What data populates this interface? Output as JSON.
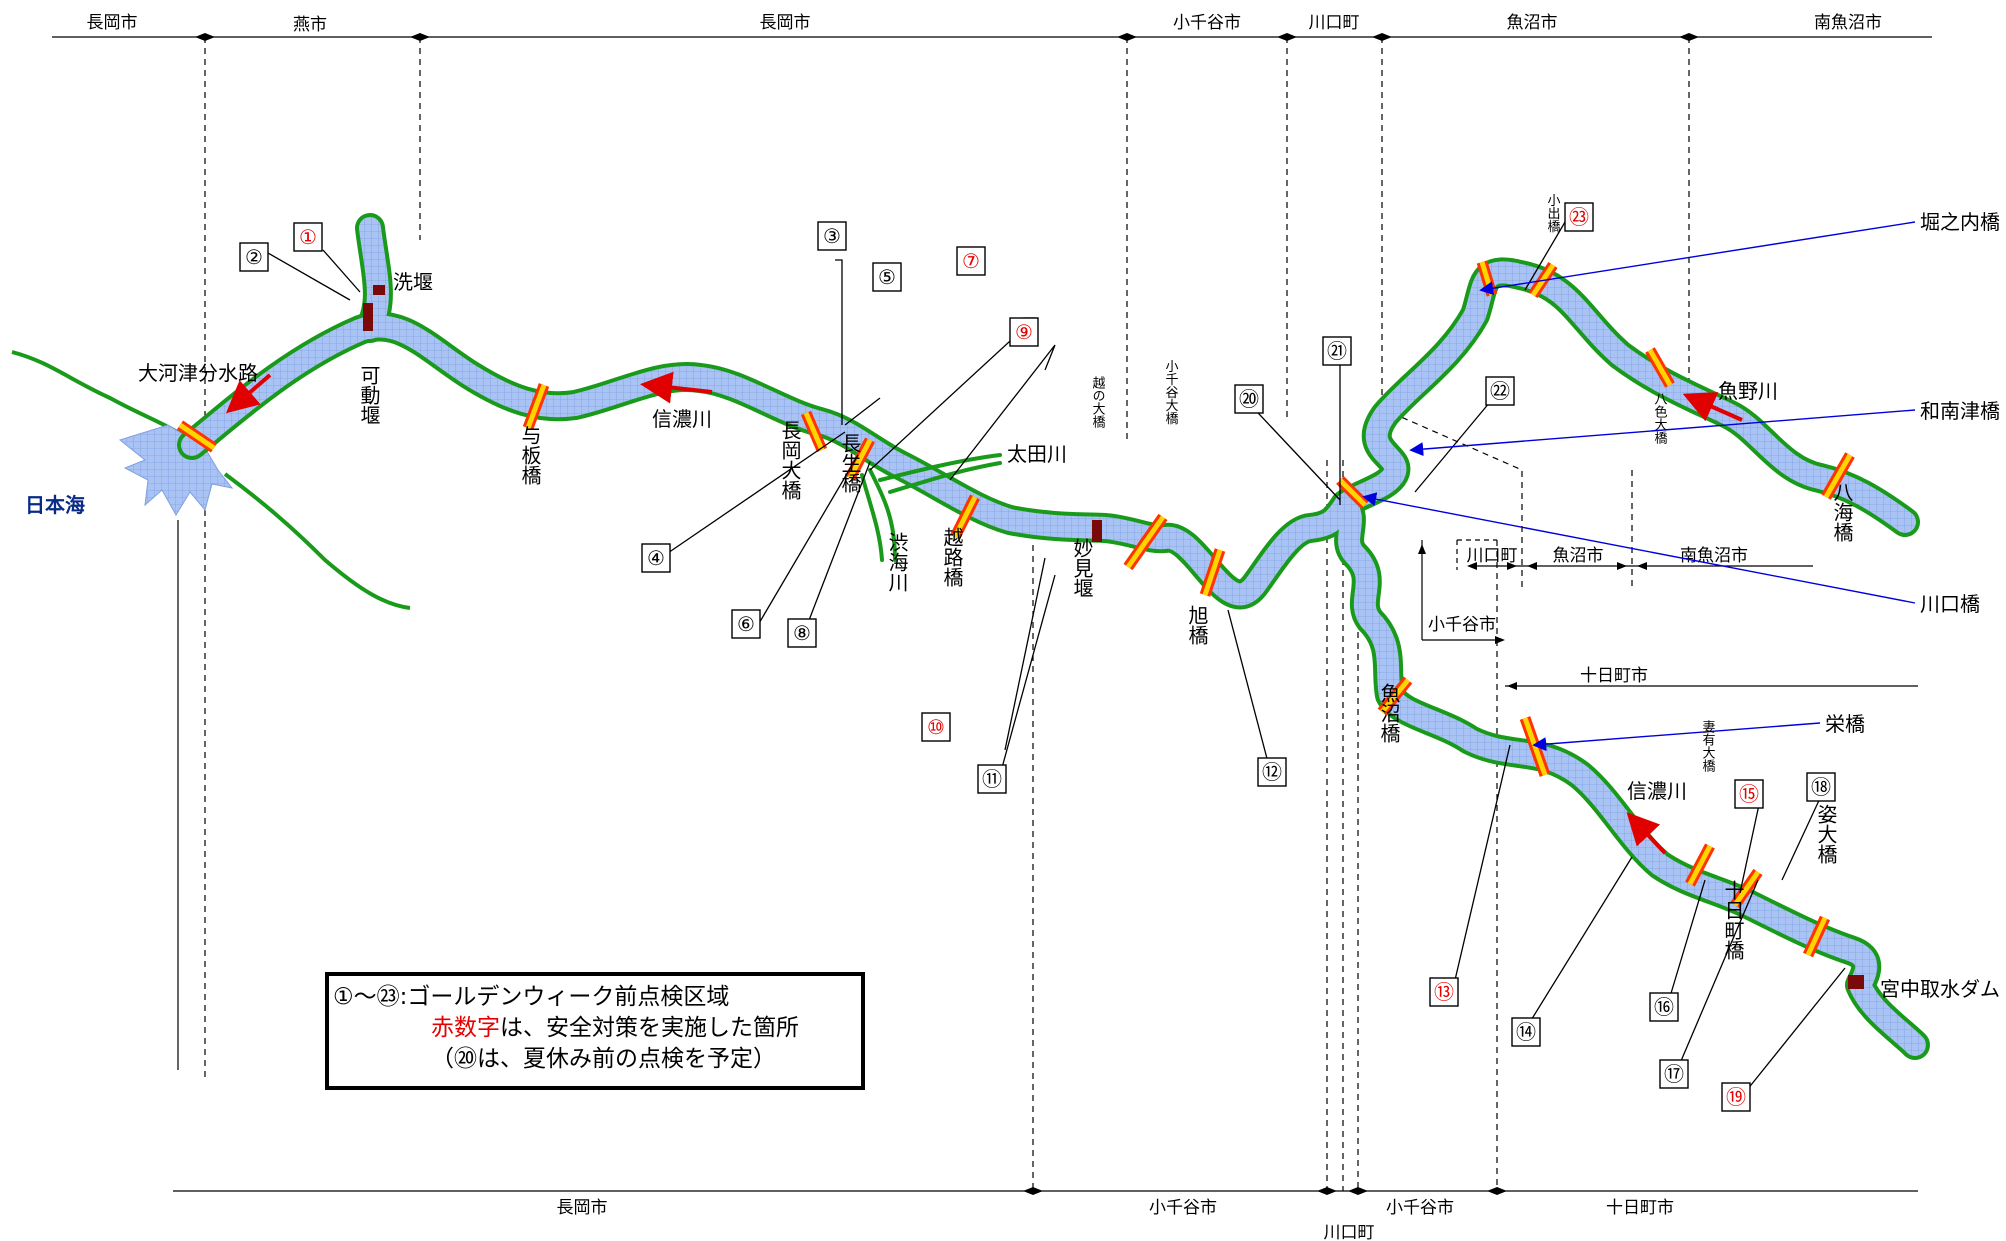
{
  "top_municipalities": [
    "長岡市",
    "燕市",
    "長岡市",
    "小千谷市",
    "川口町",
    "魚沼市",
    "南魚沼市"
  ],
  "bottom_municipalities": [
    "長岡市",
    "小千谷市",
    "小千谷市",
    "十日町市"
  ],
  "bottom_under_label": "川口町",
  "inset_labels": {
    "kawaguchi": "川口町",
    "uonuma": "魚沼市",
    "minamiuonuma": "南魚沼市",
    "ojiya": "小千谷市",
    "tokamachi": "十日町市"
  },
  "sea_label": "日本海",
  "rivers": {
    "shinano_main": "信濃川",
    "shinano_upper": "信濃川",
    "uono": "魚野川",
    "ota": "太田川",
    "shibumi": "渋海川",
    "bunsui": "大河津分水路"
  },
  "weirs": {
    "arai": "洗堰",
    "kadou": "可動堰",
    "myoken": "妙見堰",
    "miyanaka": "宮中取水ダム"
  },
  "bridges": {
    "yoita": "与板橋",
    "nagaoka": "長岡大橋",
    "nagao": "長生橋",
    "koshiji": "越路橋",
    "koshino": "越の大橋",
    "ojiya_ohashi": "小千谷大橋",
    "asahi": "旭橋",
    "uonuma": "魚沼橋",
    "koide": "小出橋",
    "yairo": "八色大橋",
    "hakkai": "八海橋",
    "tsumari": "妻有大橋",
    "tokamachi": "十日町橋",
    "sugata": "姿大橋"
  },
  "callout_bridges": {
    "horinouchi": "堀之内橋",
    "wanazu": "和南津橋",
    "kawaguchi": "川口橋",
    "sakae": "栄橋"
  },
  "markers": [
    {
      "label": "①",
      "red": true
    },
    {
      "label": "②",
      "red": false
    },
    {
      "label": "③",
      "red": false
    },
    {
      "label": "④",
      "red": false
    },
    {
      "label": "⑤",
      "red": false
    },
    {
      "label": "⑥",
      "red": false
    },
    {
      "label": "⑦",
      "red": true
    },
    {
      "label": "⑧",
      "red": false
    },
    {
      "label": "⑨",
      "red": true
    },
    {
      "label": "⑩",
      "red": true
    },
    {
      "label": "⑪",
      "red": false
    },
    {
      "label": "⑫",
      "red": false
    },
    {
      "label": "⑬",
      "red": true
    },
    {
      "label": "⑭",
      "red": false
    },
    {
      "label": "⑮",
      "red": true
    },
    {
      "label": "⑯",
      "red": false
    },
    {
      "label": "⑰",
      "red": false
    },
    {
      "label": "⑱",
      "red": false
    },
    {
      "label": "⑲",
      "red": true
    },
    {
      "label": "⑳",
      "red": false
    },
    {
      "label": "㉑",
      "red": false
    },
    {
      "label": "㉒",
      "red": false
    },
    {
      "label": "㉓",
      "red": true
    }
  ],
  "legend": {
    "line1": "①～㉓:ゴールデンウィーク前点検区域",
    "line2_red": "赤数字",
    "line2_rest": "は、安全対策を実施した箇所",
    "line3": "（⑳は、夏休み前の点検を予定）"
  },
  "colors": {
    "river_fill": "#a9c3f5",
    "river_bank": "#1a9a1a",
    "bridge": "#ffd400",
    "bridge_edge": "#ff3300",
    "flow_arrow": "#e00000",
    "weir": "#7a0a0a",
    "callout": "#0000dd",
    "red_number": "#e60000",
    "sea_label": "#0a2a88"
  }
}
